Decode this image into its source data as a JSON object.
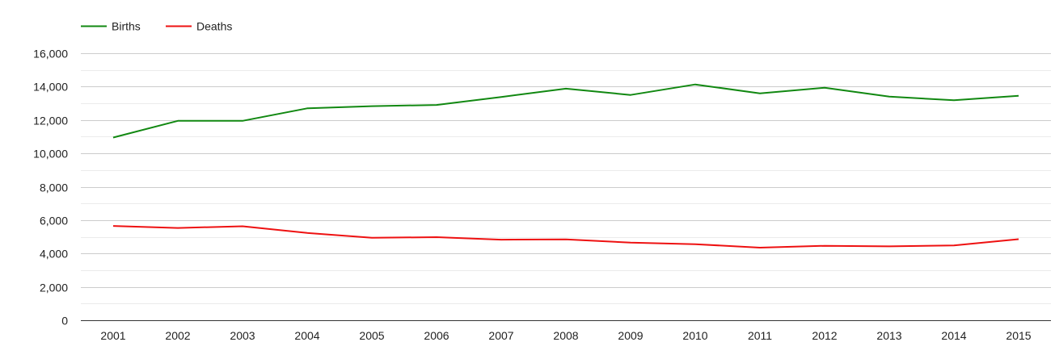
{
  "chart_data": {
    "type": "line",
    "title": "",
    "xlabel": "",
    "ylabel": "",
    "x": [
      "2001",
      "2002",
      "2003",
      "2004",
      "2005",
      "2006",
      "2007",
      "2008",
      "2009",
      "2010",
      "2011",
      "2012",
      "2013",
      "2014",
      "2015"
    ],
    "series": [
      {
        "name": "Births",
        "color": "#118811",
        "values": [
          10950,
          11950,
          11950,
          12700,
          12830,
          12900,
          13380,
          13880,
          13500,
          14130,
          13600,
          13930,
          13400,
          13180,
          13450
        ]
      },
      {
        "name": "Deaths",
        "color": "#ee1111",
        "values": [
          5650,
          5530,
          5630,
          5230,
          4940,
          4980,
          4830,
          4850,
          4650,
          4560,
          4350,
          4460,
          4430,
          4480,
          4860
        ]
      }
    ],
    "ylim": [
      0,
      16000
    ],
    "yticks": [
      0,
      2000,
      4000,
      6000,
      8000,
      10000,
      12000,
      14000,
      16000
    ],
    "ytick_labels": [
      "0",
      "2,000",
      "4,000",
      "6,000",
      "8,000",
      "10,000",
      "12,000",
      "14,000",
      "16,000"
    ],
    "grid": true,
    "legend_position": "top-left"
  }
}
